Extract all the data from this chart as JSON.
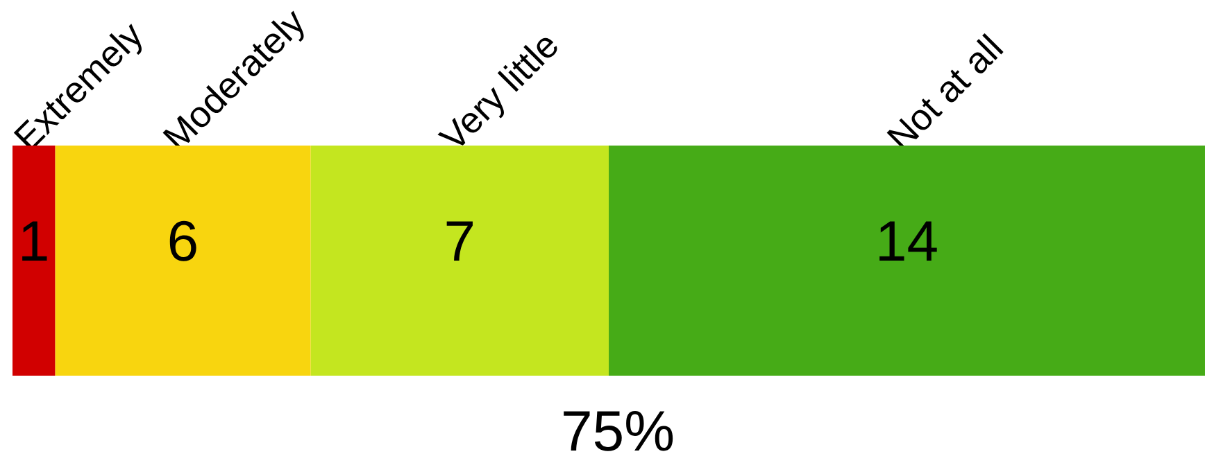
{
  "chart_data": {
    "type": "bar",
    "orientation": "horizontal",
    "stacked": true,
    "categories": [
      null
    ],
    "series": [
      {
        "name": "Extremely",
        "color": "#d10000",
        "values": [
          1
        ]
      },
      {
        "name": "Moderately",
        "color": "#f8d50f",
        "values": [
          6
        ]
      },
      {
        "name": "Very little",
        "color": "#c4e61f",
        "values": [
          7
        ]
      },
      {
        "name": "Not at all",
        "color": "#46ab17",
        "values": [
          14
        ]
      }
    ],
    "legend": false,
    "data_labels": true,
    "annotations": [
      "75%"
    ]
  }
}
